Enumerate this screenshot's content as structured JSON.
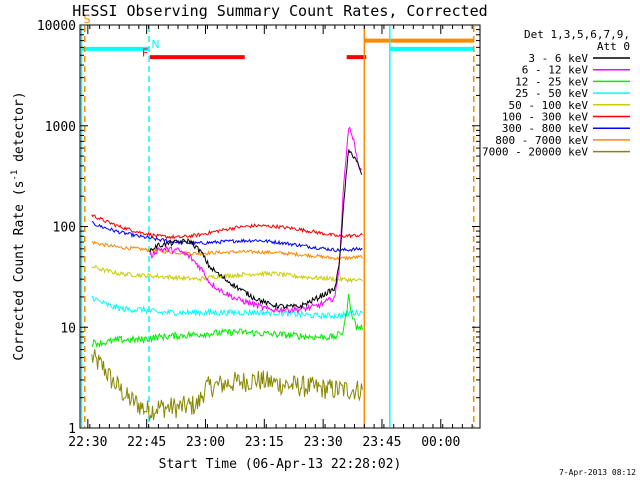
{
  "chart_data": {
    "type": "line",
    "title": "HESSI Observing Summary Count Rates, Corrected",
    "xlabel": "Start Time (06-Apr-13 22:28:02)",
    "ylabel_parts": {
      "a": "Corrected Count Rate (s",
      "sup": "-1",
      "b": " detector",
      "c": ")"
    },
    "footer": "7-Apr-2013 08:12",
    "ylog": true,
    "ylim": [
      1,
      10000
    ],
    "yticks": [
      {
        "v": 1,
        "label": "1"
      },
      {
        "v": 10,
        "label": "10"
      },
      {
        "v": 100,
        "label": "100"
      },
      {
        "v": 1000,
        "label": "1000"
      },
      {
        "v": 10000,
        "label": "10000"
      }
    ],
    "xunit": "minutes after 22:28:02",
    "xlim": [
      0,
      102
    ],
    "xticks": [
      {
        "v": 2,
        "label": "22:30"
      },
      {
        "v": 17,
        "label": "22:45"
      },
      {
        "v": 32,
        "label": "23:00"
      },
      {
        "v": 47,
        "label": "23:15"
      },
      {
        "v": 62,
        "label": "23:30"
      },
      {
        "v": 77,
        "label": "23:45"
      },
      {
        "v": 92,
        "label": "00:00"
      }
    ],
    "legend": {
      "title1": "Det 1,3,5,6,7,9,",
      "title2": "Att 0",
      "entries": [
        {
          "label": "3 - 6 keV",
          "color": "#000000"
        },
        {
          "label": "6 - 12 keV",
          "color": "#ff00ff"
        },
        {
          "label": "12 - 25 keV",
          "color": "#00ee00"
        },
        {
          "label": "25 - 50 keV",
          "color": "#00ffff"
        },
        {
          "label": "50 - 100 keV",
          "color": "#cccc00"
        },
        {
          "label": "100 - 300 keV",
          "color": "#ff0000"
        },
        {
          "label": "300 - 800 keV",
          "color": "#0000ff"
        },
        {
          "label": "800 - 7000 keV",
          "color": "#ff8800"
        },
        {
          "label": "7000 - 20000 keV",
          "color": "#888800"
        }
      ]
    },
    "flags": [
      {
        "label": "S",
        "color": "#ff8800",
        "x": [
          0.3,
          81.5
        ],
        "y": 7000
      },
      {
        "label": "N",
        "color": "#00ffff",
        "x": [
          0.3,
          17.5,
          75,
          101.5
        ],
        "y": 5800
      },
      {
        "label": "F",
        "color": "#ff0000",
        "x": [
          17.8,
          42,
          68,
          73
        ],
        "y": 4800
      }
    ],
    "flag_segments": [
      {
        "color": "#00ffff",
        "y": 5800,
        "x0": 0.3,
        "x1": 17.5
      },
      {
        "color": "#ff0000",
        "y": 4800,
        "x0": 17.8,
        "x1": 42
      },
      {
        "color": "#ff0000",
        "y": 4800,
        "x0": 68,
        "x1": 73
      },
      {
        "color": "#ff8800",
        "y": 7000,
        "x0": 72.5,
        "x1": 100.5
      },
      {
        "color": "#00ffff",
        "y": 5800,
        "x0": 79,
        "x1": 100.5
      }
    ],
    "vlines": [
      {
        "color": "#00ffff",
        "x": 0.4,
        "dashed": false
      },
      {
        "color": "#ff8800",
        "x": 1.2,
        "dashed": true
      },
      {
        "color": "#00ffff",
        "x": 17.6,
        "dashed": true
      },
      {
        "color": "#ff8800",
        "x": 72.5,
        "dashed": false
      },
      {
        "color": "#00ffff",
        "x": 79,
        "dashed": false
      },
      {
        "color": "#ff8800",
        "x": 100.4,
        "dashed": true
      }
    ],
    "series": [
      {
        "name": "3 - 6 keV",
        "color": "#000000",
        "noise": 0.06,
        "x": [
          17.8,
          20,
          25,
          28,
          31,
          33,
          36,
          40,
          44,
          48,
          52,
          56,
          60,
          63,
          65,
          66,
          67,
          68,
          68.5,
          69.5,
          70.5,
          72
        ],
        "y": [
          58,
          65,
          70,
          72,
          55,
          40,
          32,
          25,
          20,
          17,
          16,
          16,
          19,
          22,
          24,
          40,
          120,
          380,
          550,
          520,
          460,
          300
        ]
      },
      {
        "name": "6 - 12 keV",
        "color": "#ff00ff",
        "noise": 0.07,
        "x": [
          17.8,
          20,
          25,
          28,
          31,
          33,
          36,
          40,
          44,
          48,
          52,
          56,
          60,
          63,
          65,
          66,
          67,
          68,
          68.5,
          69.5,
          70.5,
          72
        ],
        "y": [
          50,
          60,
          58,
          50,
          38,
          28,
          23,
          19,
          17,
          15,
          15,
          15,
          16,
          18,
          20,
          35,
          180,
          620,
          950,
          800,
          500,
          320
        ]
      },
      {
        "name": "12 - 25 keV",
        "color": "#00ee00",
        "noise": 0.08,
        "x": [
          3,
          6,
          10,
          15,
          20,
          30,
          40,
          50,
          60,
          65,
          67,
          68,
          68.5,
          69.5,
          70.5,
          72
        ],
        "y": [
          7,
          7,
          7.5,
          7.5,
          8,
          8.5,
          9,
          8.5,
          8,
          8,
          9,
          14,
          20,
          13,
          10,
          10
        ]
      },
      {
        "name": "25 - 50 keV",
        "color": "#00ffff",
        "noise": 0.07,
        "x": [
          3,
          5,
          8,
          12,
          16,
          20,
          30,
          40,
          50,
          60,
          66,
          69,
          72
        ],
        "y": [
          20,
          18,
          16,
          15,
          15,
          14,
          14,
          14,
          14,
          13,
          13,
          14,
          14
        ]
      },
      {
        "name": "50 - 100 keV",
        "color": "#cccc00",
        "noise": 0.05,
        "x": [
          3,
          6,
          10,
          15,
          20,
          25,
          30,
          35,
          40,
          45,
          50,
          55,
          60,
          66,
          72
        ],
        "y": [
          40,
          37,
          34,
          33,
          32,
          31,
          30,
          32,
          33,
          34,
          34,
          32,
          31,
          30,
          29
        ]
      },
      {
        "name": "100 - 300 keV",
        "color": "#ff0000",
        "noise": 0.04,
        "x": [
          3,
          6,
          10,
          15,
          20,
          25,
          30,
          35,
          40,
          45,
          50,
          55,
          60,
          66,
          72
        ],
        "y": [
          130,
          115,
          100,
          88,
          80,
          78,
          82,
          90,
          98,
          102,
          100,
          95,
          88,
          80,
          82
        ]
      },
      {
        "name": "300 - 800 keV",
        "color": "#0000ff",
        "noise": 0.04,
        "x": [
          3,
          6,
          10,
          15,
          20,
          25,
          30,
          35,
          40,
          45,
          50,
          55,
          60,
          66,
          72
        ],
        "y": [
          108,
          98,
          88,
          80,
          74,
          70,
          68,
          70,
          72,
          73,
          70,
          66,
          62,
          58,
          60
        ]
      },
      {
        "name": "800 - 7000 keV",
        "color": "#ff8800",
        "noise": 0.04,
        "x": [
          3,
          6,
          10,
          15,
          20,
          25,
          30,
          35,
          40,
          45,
          50,
          55,
          60,
          66,
          72
        ],
        "y": [
          70,
          66,
          62,
          60,
          57,
          55,
          54,
          55,
          56,
          56,
          55,
          53,
          51,
          48,
          50
        ]
      },
      {
        "name": "7000 - 20000 keV",
        "color": "#888800",
        "noise": 0.25,
        "x": [
          3,
          6,
          8,
          10,
          12,
          14,
          16,
          17,
          18,
          20,
          25,
          30,
          32,
          38,
          45,
          52,
          60,
          66,
          72
        ],
        "y": [
          5,
          4,
          3,
          2.5,
          2,
          1.8,
          1.6,
          1.5,
          1.5,
          1.6,
          1.6,
          1.7,
          2.5,
          2.8,
          3,
          2.7,
          2.5,
          2.4,
          2.4
        ]
      }
    ]
  }
}
